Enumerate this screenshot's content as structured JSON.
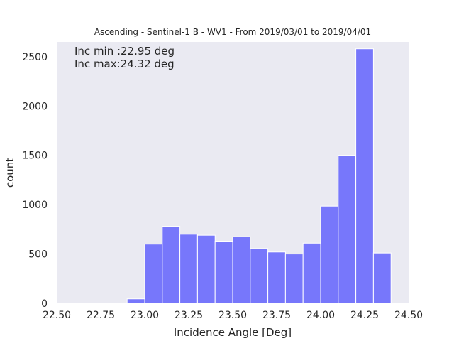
{
  "chart_data": {
    "type": "bar",
    "title": "Ascending - Sentinel-1 B - WV1 - From 2019/03/01 to 2019/04/01",
    "xlabel": "Incidence Angle [Deg]",
    "ylabel": "count",
    "xlim": [
      22.5,
      24.5
    ],
    "ylim": [
      0,
      2650
    ],
    "x_ticks": [
      "22.50",
      "22.75",
      "23.00",
      "23.25",
      "23.50",
      "23.75",
      "24.00",
      "24.25",
      "24.50"
    ],
    "y_ticks": [
      "0",
      "500",
      "1000",
      "1500",
      "2000",
      "2500"
    ],
    "grid": false,
    "bin_edges": [
      22.9,
      23.0,
      23.1,
      23.2,
      23.3,
      23.4,
      23.5,
      23.6,
      23.7,
      23.8,
      23.9,
      24.0,
      24.1,
      24.2,
      24.3,
      24.4
    ],
    "values": [
      45,
      600,
      780,
      700,
      690,
      630,
      675,
      555,
      520,
      500,
      610,
      985,
      1500,
      2580,
      510
    ],
    "bar_color": "#7777fb",
    "background_color": "#eaeaf2",
    "annotations": [
      "Inc min :22.95 deg",
      "Inc max:24.32 deg"
    ]
  }
}
